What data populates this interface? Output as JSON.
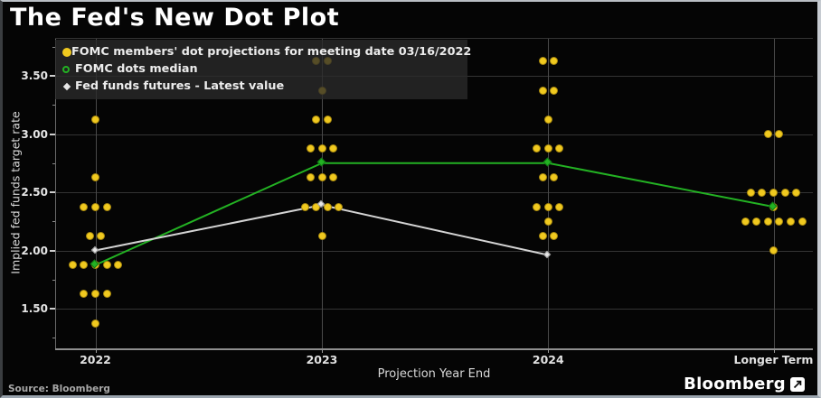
{
  "frame": {
    "source": "Source: Bloomberg",
    "brand": "Bloomberg"
  },
  "legend": {
    "items": [
      {
        "marker": "yellow-dot",
        "label": "FOMC members' dot projections for meeting date 03/16/2022"
      },
      {
        "marker": "green-open-circle",
        "label": "FOMC dots median"
      },
      {
        "marker": "white-diamond",
        "label": "Fed funds futures - Latest value"
      }
    ]
  },
  "chart_data": {
    "type": "scatter",
    "title": "The Fed's New Dot Plot",
    "xlabel": "Projection Year End",
    "ylabel": "Implied fed funds target rate",
    "categories": [
      "2022",
      "2023",
      "2024",
      "Longer Term"
    ],
    "y_axis": {
      "major_ticks": [
        3.5,
        3.0,
        2.5,
        2.0,
        1.5
      ],
      "minor_ticks": [
        3.75,
        3.25,
        2.75,
        2.25,
        1.75,
        1.25
      ],
      "range_shown": [
        1.15,
        3.83
      ]
    },
    "grid": true,
    "legend_position": "top-left",
    "dot_groups": [
      {
        "category": "2022",
        "levels": [
          {
            "rate": 3.125,
            "count": 1
          },
          {
            "rate": 2.625,
            "count": 1
          },
          {
            "rate": 2.375,
            "count": 3
          },
          {
            "rate": 2.125,
            "count": 2
          },
          {
            "rate": 1.875,
            "count": 5
          },
          {
            "rate": 1.625,
            "count": 3
          },
          {
            "rate": 1.375,
            "count": 1
          }
        ]
      },
      {
        "category": "2023",
        "levels": [
          {
            "rate": 3.625,
            "count": 2
          },
          {
            "rate": 3.375,
            "count": 1
          },
          {
            "rate": 3.125,
            "count": 2
          },
          {
            "rate": 2.875,
            "count": 3
          },
          {
            "rate": 2.625,
            "count": 3
          },
          {
            "rate": 2.375,
            "count": 4
          },
          {
            "rate": 2.125,
            "count": 1
          }
        ]
      },
      {
        "category": "2024",
        "levels": [
          {
            "rate": 3.625,
            "count": 2
          },
          {
            "rate": 3.375,
            "count": 2
          },
          {
            "rate": 3.125,
            "count": 1
          },
          {
            "rate": 2.875,
            "count": 3
          },
          {
            "rate": 2.625,
            "count": 2
          },
          {
            "rate": 2.375,
            "count": 3
          },
          {
            "rate": 2.25,
            "count": 1
          },
          {
            "rate": 2.125,
            "count": 2
          }
        ]
      },
      {
        "category": "Longer Term",
        "levels": [
          {
            "rate": 3.0,
            "count": 2
          },
          {
            "rate": 2.5,
            "count": 5
          },
          {
            "rate": 2.375,
            "count": 1
          },
          {
            "rate": 2.25,
            "count": 6
          },
          {
            "rate": 2.0,
            "count": 1
          }
        ]
      }
    ],
    "series": [
      {
        "name": "FOMC dots median",
        "type": "line",
        "color": "#23b223",
        "x": [
          "2022",
          "2023",
          "2024",
          "Longer Term"
        ],
        "values": [
          1.875,
          2.75,
          2.75,
          2.375
        ]
      },
      {
        "name": "Fed funds futures - Latest value",
        "type": "line",
        "color": "#d4d4d4",
        "x": [
          "2022",
          "2023",
          "2024"
        ],
        "values": [
          2.0,
          2.39,
          1.96
        ]
      }
    ],
    "colors": {
      "dots": "#f0c91f",
      "median": "#23b223",
      "futures": "#d4d4d4",
      "background": "#050505"
    }
  }
}
